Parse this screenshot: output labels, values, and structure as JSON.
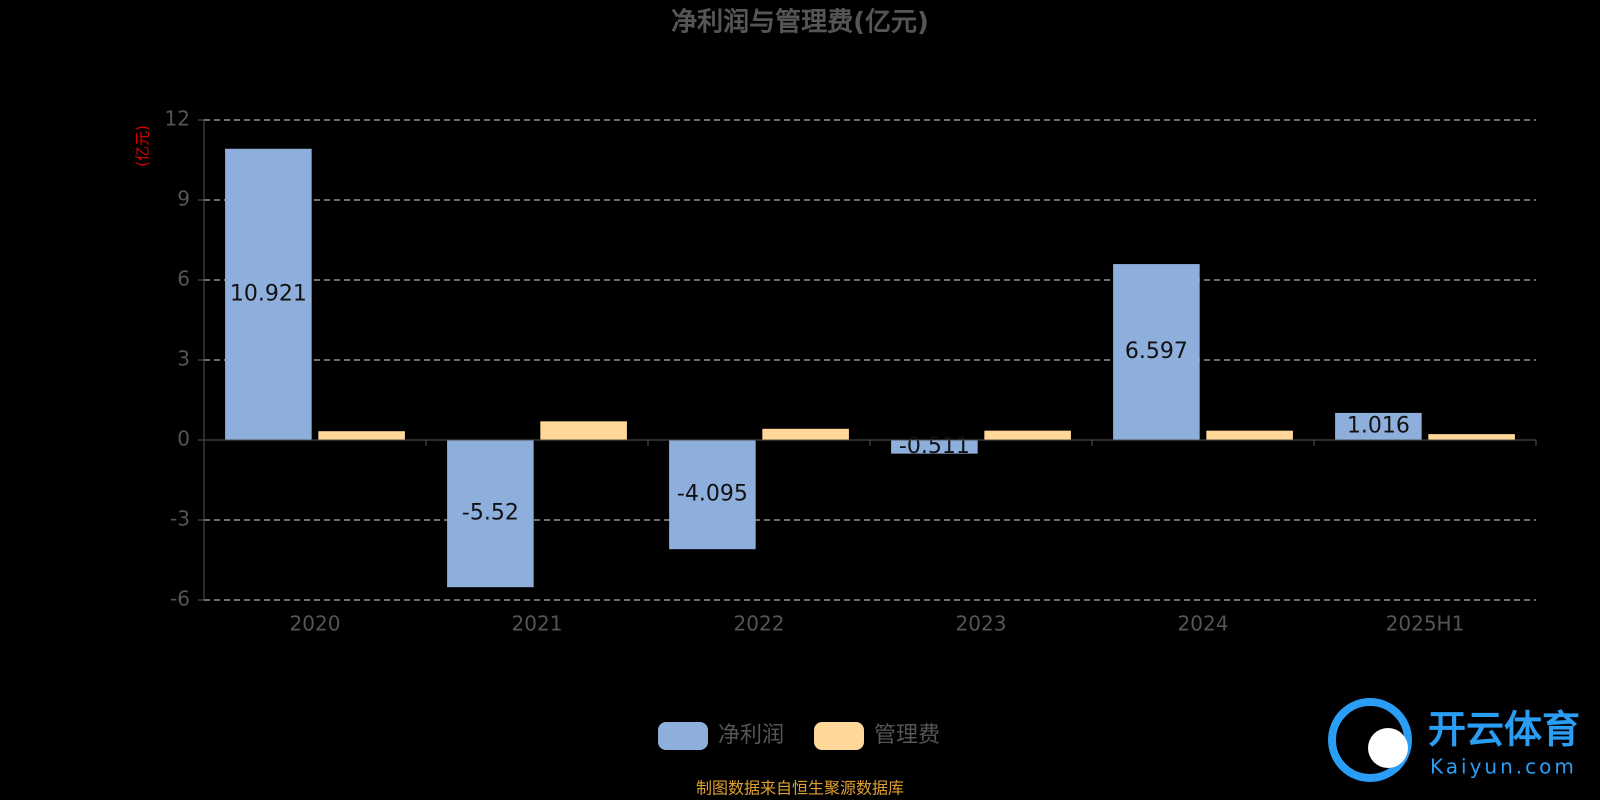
{
  "chart_data": {
    "type": "bar",
    "title": "净利润与管理费(亿元)",
    "y_axis_label": "(亿元)",
    "categories": [
      "2020",
      "2021",
      "2022",
      "2023",
      "2024",
      "2025H1"
    ],
    "series": [
      {
        "name": "净利润",
        "color": "#8eaedb",
        "values": [
          10.921,
          -5.52,
          -4.095,
          -0.511,
          6.597,
          1.016
        ],
        "show_labels": true
      },
      {
        "name": "管理费",
        "color": "#ffd899",
        "values": [
          0.33,
          0.7,
          0.42,
          0.35,
          0.35,
          0.22
        ],
        "show_labels": false
      }
    ],
    "ylim": [
      -6,
      12
    ],
    "yticks": [
      -6,
      -3,
      0,
      3,
      6,
      9,
      12
    ],
    "grid": true,
    "legend": "bottom",
    "source": "制图数据来自恒生聚源数据库",
    "watermark": {
      "brand": "开云体育",
      "site": "Kaiyun.com"
    }
  }
}
